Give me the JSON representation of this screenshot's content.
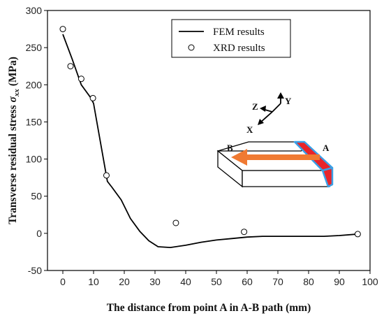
{
  "chart_data": {
    "type": "line",
    "title": "",
    "xlabel": "The distance from point A in A-B path (mm)",
    "ylabel_main": "Transverse residual stress ",
    "ylabel_symbol": "σ",
    "ylabel_subscript": "xx",
    "ylabel_unit": " (MPa)",
    "xlim": [
      -5,
      100
    ],
    "ylim": [
      -50,
      300
    ],
    "xticks": [
      "0",
      "10",
      "20",
      "30",
      "40",
      "50",
      "60",
      "70",
      "80",
      "90",
      "100"
    ],
    "yticks": [
      "-50",
      "0",
      "50",
      "100",
      "150",
      "200",
      "250",
      "300"
    ],
    "legend_position": "top-right",
    "series": [
      {
        "name": "FEM results",
        "kind": "line",
        "color": "#000000",
        "x": [
          0,
          3,
          6,
          9,
          10,
          11.5,
          13,
          14.5,
          16,
          19,
          22,
          25,
          28,
          31,
          35,
          40,
          45,
          50,
          55,
          60,
          65,
          70,
          75,
          80,
          85,
          90,
          96
        ],
        "y": [
          268,
          235,
          200,
          183,
          175,
          140,
          105,
          70,
          62,
          45,
          20,
          3,
          -10,
          -18,
          -19,
          -16,
          -12,
          -9,
          -7,
          -5,
          -4,
          -4,
          -4,
          -4,
          -4,
          -3,
          -1
        ]
      },
      {
        "name": "XRD results",
        "kind": "scatter",
        "marker": "hollow-circle",
        "color": "#000000",
        "x": [
          0,
          2.5,
          6,
          9.8,
          14.2,
          36.8,
          59,
          96
        ],
        "y": [
          275,
          225,
          208,
          182,
          78,
          14,
          2,
          -1
        ]
      }
    ]
  },
  "inset": {
    "axis_labels": {
      "z": "Z",
      "y": "Y",
      "x": "X"
    },
    "point_labels": {
      "a": "A",
      "b": "B"
    },
    "colors": {
      "weld": "#e8242a",
      "weld_outline": "#3aa0e6",
      "arrow": "#f07a32"
    }
  }
}
